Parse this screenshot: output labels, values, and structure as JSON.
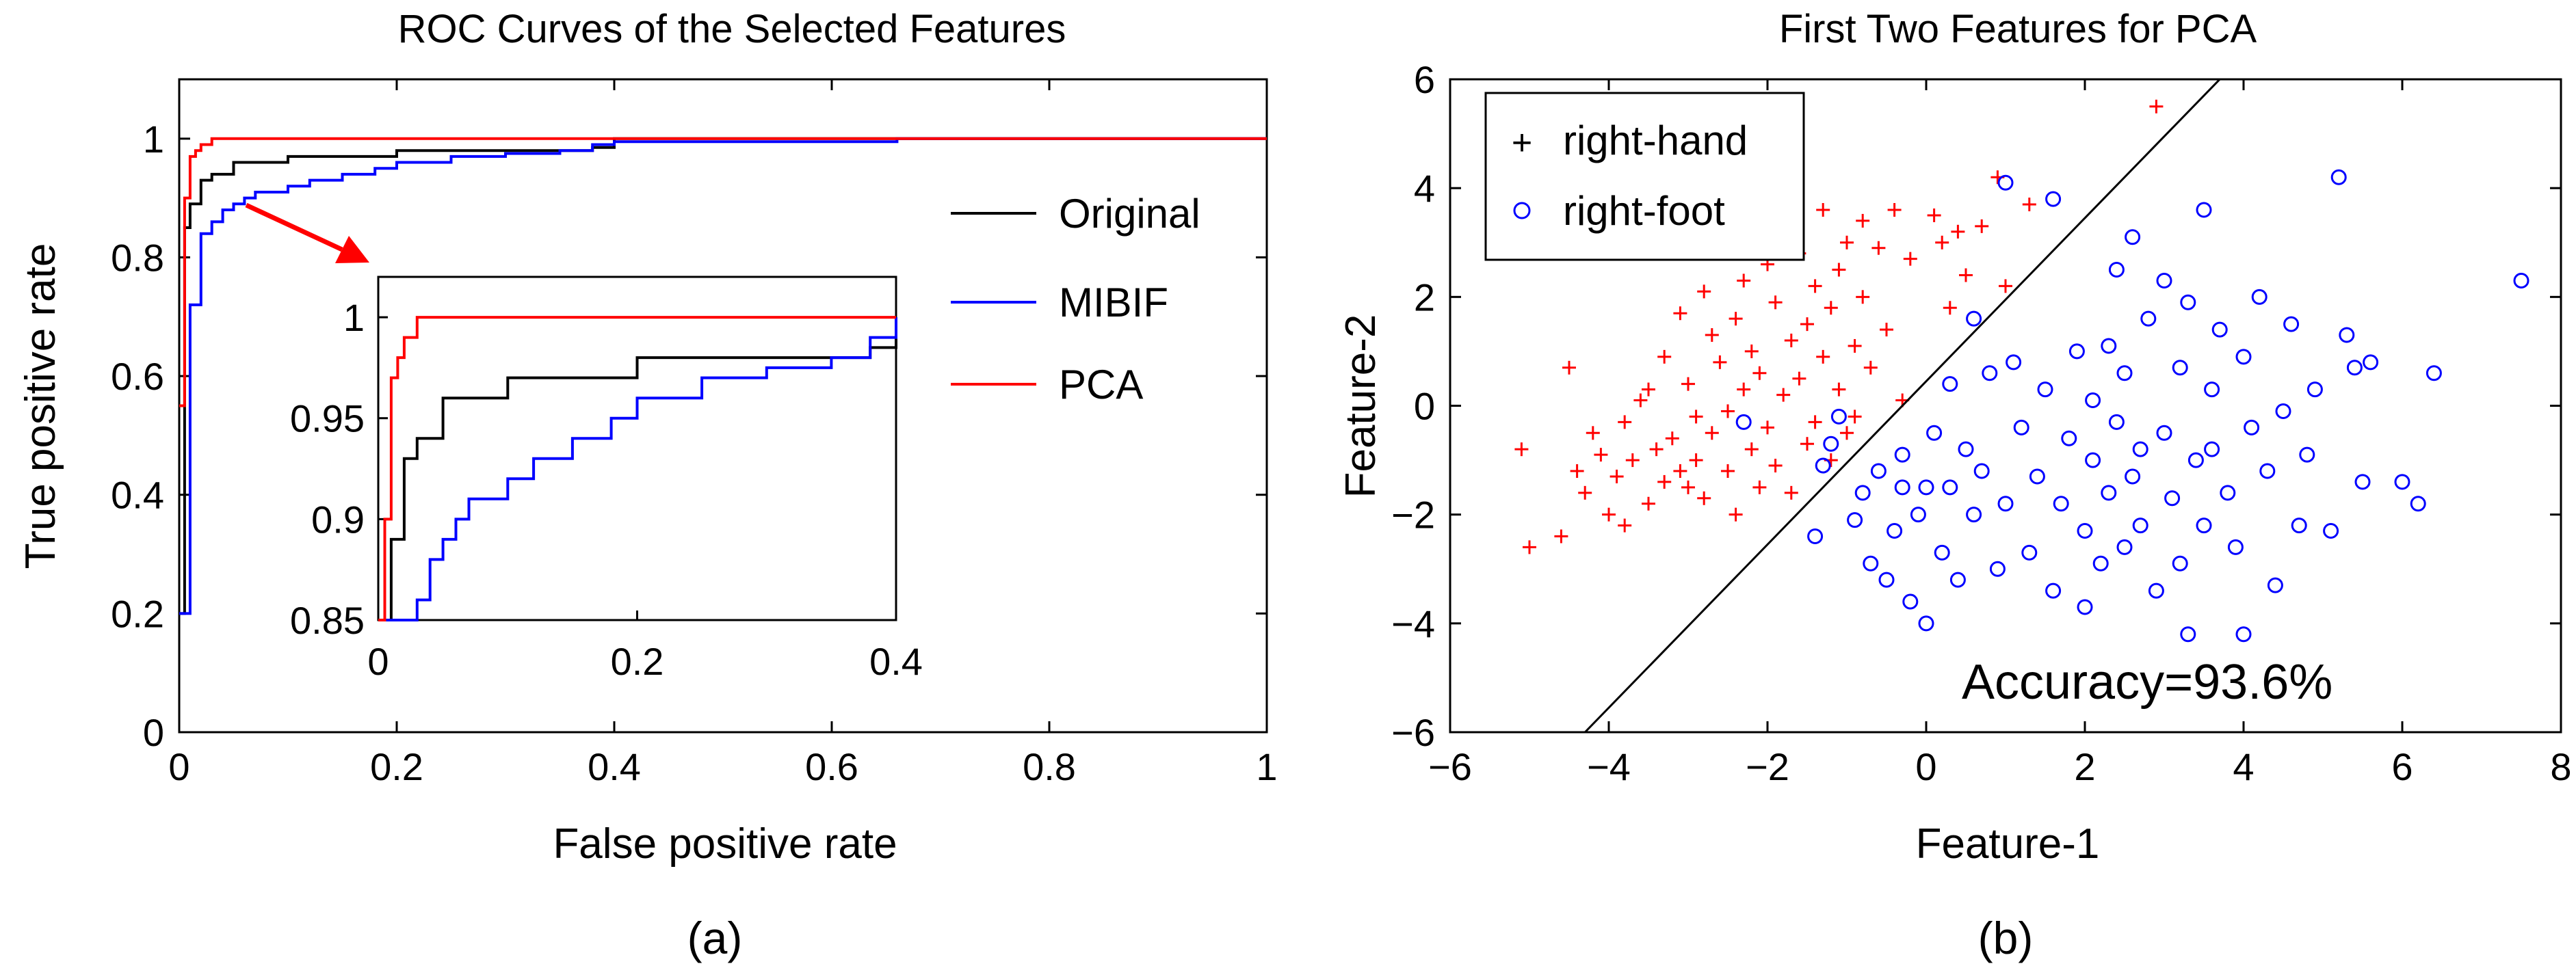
{
  "colors": {
    "original": "#000000",
    "mibif": "#0000ff",
    "pca": "#ff0000",
    "marker_red": "#ff0000",
    "marker_blue": "#0000ff",
    "arrow": "#ff0000"
  },
  "panel_a": {
    "caption": "(a)"
  },
  "panel_b": {
    "caption": "(b)",
    "accuracy_text": "Accuracy=93.6%"
  },
  "chart_data": [
    {
      "type": "line",
      "title": "ROC Curves of the Selected Features",
      "xlabel": "False positive rate",
      "ylabel": "True positive rate",
      "xlim": [
        0,
        1
      ],
      "ylim": [
        0,
        1.1
      ],
      "xticks": [
        0,
        0.2,
        0.4,
        0.6,
        0.8,
        1
      ],
      "xtick_labels": [
        "0",
        "0.2",
        "0.4",
        "0.6",
        "0.8",
        "1"
      ],
      "yticks": [
        0,
        0.2,
        0.4,
        0.6,
        0.8,
        1
      ],
      "ytick_labels": [
        "0",
        "0.2",
        "0.4",
        "0.6",
        "0.8",
        "1"
      ],
      "legend": [
        "Original",
        "MIBIF",
        "PCA"
      ],
      "legend_position": "right",
      "series": [
        {
          "name": "Original",
          "color": "#000000",
          "x": [
            0,
            0.005,
            0.005,
            0.01,
            0.01,
            0.02,
            0.02,
            0.03,
            0.03,
            0.05,
            0.05,
            0.1,
            0.1,
            0.2,
            0.2,
            0.38,
            0.38,
            0.4,
            0.4,
            1
          ],
          "y": [
            0.2,
            0.2,
            0.85,
            0.85,
            0.89,
            0.89,
            0.93,
            0.93,
            0.94,
            0.94,
            0.96,
            0.96,
            0.97,
            0.97,
            0.98,
            0.98,
            0.985,
            0.985,
            1.0,
            1.0
          ]
        },
        {
          "name": "MIBIF",
          "color": "#0000ff",
          "x": [
            0,
            0.01,
            0.01,
            0.02,
            0.02,
            0.03,
            0.03,
            0.04,
            0.04,
            0.05,
            0.05,
            0.06,
            0.06,
            0.07,
            0.07,
            0.1,
            0.1,
            0.12,
            0.12,
            0.15,
            0.15,
            0.18,
            0.18,
            0.2,
            0.2,
            0.25,
            0.25,
            0.3,
            0.3,
            0.35,
            0.35,
            0.38,
            0.38,
            0.4,
            0.4,
            0.66,
            0.66,
            1.0
          ],
          "y": [
            0.2,
            0.2,
            0.72,
            0.72,
            0.84,
            0.84,
            0.86,
            0.86,
            0.88,
            0.88,
            0.89,
            0.89,
            0.9,
            0.9,
            0.91,
            0.91,
            0.92,
            0.92,
            0.93,
            0.93,
            0.94,
            0.94,
            0.95,
            0.95,
            0.96,
            0.96,
            0.97,
            0.97,
            0.975,
            0.975,
            0.98,
            0.98,
            0.99,
            0.99,
            0.995,
            0.995,
            1.0,
            1.0
          ]
        },
        {
          "name": "PCA",
          "color": "#ff0000",
          "x": [
            0,
            0.005,
            0.005,
            0.01,
            0.01,
            0.015,
            0.015,
            0.02,
            0.02,
            0.03,
            0.03,
            1.0
          ],
          "y": [
            0.55,
            0.55,
            0.9,
            0.9,
            0.97,
            0.97,
            0.98,
            0.98,
            0.99,
            0.99,
            1.0,
            1.0
          ]
        }
      ],
      "inset": {
        "xlim": [
          0,
          0.4
        ],
        "ylim": [
          0.85,
          1.02
        ],
        "xticks": [
          0,
          0.2,
          0.4
        ],
        "xtick_labels": [
          "0",
          "0.2",
          "0.4"
        ],
        "yticks": [
          0.85,
          0.9,
          0.95,
          1
        ],
        "ytick_labels": [
          "0.85",
          "0.9",
          "0.95",
          "1"
        ]
      }
    },
    {
      "type": "scatter",
      "title": "First Two Features for PCA",
      "xlabel": "Feature-1",
      "ylabel": "Feature-2",
      "xlim": [
        -6,
        8
      ],
      "ylim": [
        -6,
        6
      ],
      "xticks": [
        -6,
        -4,
        -2,
        0,
        2,
        4,
        6,
        8
      ],
      "xtick_labels": [
        "−6",
        "−4",
        "−2",
        "0",
        "2",
        "4",
        "6",
        "8"
      ],
      "yticks": [
        -6,
        -4,
        -2,
        0,
        2,
        4,
        6
      ],
      "ytick_labels": [
        "−6",
        "−4",
        "−2",
        "0",
        "2",
        "4",
        "6"
      ],
      "legend": [
        "right-hand",
        "right-foot"
      ],
      "legend_position": "top-left",
      "decision_boundary": {
        "x": [
          -4.3,
          3.7
        ],
        "y": [
          -6,
          6
        ]
      },
      "series": [
        {
          "name": "right-hand",
          "marker": "+",
          "color": "#ff0000",
          "points": [
            [
              -5.1,
              -0.8
            ],
            [
              -5.0,
              -2.6
            ],
            [
              -4.6,
              -2.4
            ],
            [
              -4.5,
              0.7
            ],
            [
              -4.4,
              -1.2
            ],
            [
              -4.3,
              -1.6
            ],
            [
              -4.2,
              -0.5
            ],
            [
              -4.1,
              -0.9
            ],
            [
              -4.0,
              -2.0
            ],
            [
              -3.9,
              -1.3
            ],
            [
              -3.8,
              -0.3
            ],
            [
              -3.8,
              -2.2
            ],
            [
              -3.7,
              -1.0
            ],
            [
              -3.6,
              0.1
            ],
            [
              -3.5,
              -1.8
            ],
            [
              -3.5,
              0.3
            ],
            [
              -3.4,
              -0.8
            ],
            [
              -3.3,
              -1.4
            ],
            [
              -3.3,
              0.9
            ],
            [
              -3.2,
              -0.6
            ],
            [
              -3.1,
              -1.2
            ],
            [
              -3.1,
              1.7
            ],
            [
              -3.0,
              -1.5
            ],
            [
              -3.0,
              0.4
            ],
            [
              -2.9,
              -0.2
            ],
            [
              -2.9,
              -1.0
            ],
            [
              -2.8,
              -1.7
            ],
            [
              -2.8,
              2.1
            ],
            [
              -2.7,
              -0.5
            ],
            [
              -2.7,
              1.3
            ],
            [
              -2.6,
              2.9
            ],
            [
              -2.6,
              0.8
            ],
            [
              -2.5,
              -1.2
            ],
            [
              -2.5,
              -0.1
            ],
            [
              -2.4,
              1.6
            ],
            [
              -2.4,
              -2.0
            ],
            [
              -2.3,
              0.3
            ],
            [
              -2.3,
              2.3
            ],
            [
              -2.2,
              -0.8
            ],
            [
              -2.2,
              1.0
            ],
            [
              -2.1,
              -1.5
            ],
            [
              -2.1,
              0.6
            ],
            [
              -2.0,
              2.6
            ],
            [
              -2.0,
              -0.4
            ],
            [
              -1.9,
              1.9
            ],
            [
              -1.9,
              -1.1
            ],
            [
              -1.8,
              0.2
            ],
            [
              -1.8,
              3.3
            ],
            [
              -1.7,
              1.2
            ],
            [
              -1.7,
              -1.6
            ],
            [
              -1.6,
              2.8
            ],
            [
              -1.6,
              0.5
            ],
            [
              -1.5,
              -0.7
            ],
            [
              -1.5,
              1.5
            ],
            [
              -1.4,
              2.2
            ],
            [
              -1.4,
              -0.3
            ],
            [
              -1.3,
              3.6
            ],
            [
              -1.3,
              0.9
            ],
            [
              -1.2,
              -1.0
            ],
            [
              -1.2,
              1.8
            ],
            [
              -1.1,
              0.3
            ],
            [
              -1.1,
              2.5
            ],
            [
              -1.0,
              -0.5
            ],
            [
              -1.0,
              3.0
            ],
            [
              -0.9,
              1.1
            ],
            [
              -0.9,
              -0.2
            ],
            [
              -0.8,
              2.0
            ],
            [
              -0.8,
              3.4
            ],
            [
              -0.7,
              0.7
            ],
            [
              -0.6,
              2.9
            ],
            [
              -0.5,
              1.4
            ],
            [
              -0.4,
              3.6
            ],
            [
              -0.3,
              0.1
            ],
            [
              -0.2,
              2.7
            ],
            [
              0.1,
              3.5
            ],
            [
              0.2,
              3.0
            ],
            [
              0.3,
              1.8
            ],
            [
              0.4,
              3.2
            ],
            [
              0.5,
              2.4
            ],
            [
              0.7,
              3.3
            ],
            [
              0.9,
              4.2
            ],
            [
              1.0,
              2.2
            ],
            [
              1.3,
              3.7
            ],
            [
              2.9,
              5.5
            ]
          ]
        },
        {
          "name": "right-foot",
          "marker": "o",
          "color": "#0000ff",
          "points": [
            [
              -2.3,
              -0.3
            ],
            [
              -1.4,
              -2.4
            ],
            [
              -1.3,
              -1.1
            ],
            [
              -1.2,
              -0.7
            ],
            [
              -1.1,
              -0.2
            ],
            [
              -0.9,
              -2.1
            ],
            [
              -0.8,
              -1.6
            ],
            [
              -0.7,
              -2.9
            ],
            [
              -0.6,
              -1.2
            ],
            [
              -0.5,
              -3.2
            ],
            [
              -0.4,
              -2.3
            ],
            [
              -0.3,
              -0.9
            ],
            [
              -0.3,
              -1.5
            ],
            [
              -0.2,
              -3.6
            ],
            [
              -0.1,
              -2.0
            ],
            [
              0.0,
              -1.5
            ],
            [
              0.0,
              -4.0
            ],
            [
              0.1,
              -0.5
            ],
            [
              0.2,
              -2.7
            ],
            [
              0.3,
              0.4
            ],
            [
              0.3,
              -1.5
            ],
            [
              0.4,
              -3.2
            ],
            [
              0.5,
              -0.8
            ],
            [
              0.6,
              1.6
            ],
            [
              0.6,
              -2.0
            ],
            [
              0.7,
              -1.2
            ],
            [
              0.8,
              0.6
            ],
            [
              0.9,
              -3.0
            ],
            [
              1.0,
              -1.8
            ],
            [
              1.0,
              4.1
            ],
            [
              1.1,
              0.8
            ],
            [
              1.2,
              -0.4
            ],
            [
              1.3,
              -2.7
            ],
            [
              1.4,
              -1.3
            ],
            [
              1.5,
              0.3
            ],
            [
              1.6,
              -3.4
            ],
            [
              1.6,
              3.8
            ],
            [
              1.7,
              -1.8
            ],
            [
              1.8,
              -0.6
            ],
            [
              1.9,
              1.0
            ],
            [
              2.0,
              -2.3
            ],
            [
              2.0,
              -3.7
            ],
            [
              2.1,
              0.1
            ],
            [
              2.1,
              -1.0
            ],
            [
              2.2,
              -2.9
            ],
            [
              2.3,
              1.1
            ],
            [
              2.3,
              -1.6
            ],
            [
              2.4,
              -0.3
            ],
            [
              2.4,
              2.5
            ],
            [
              2.5,
              -2.6
            ],
            [
              2.5,
              0.6
            ],
            [
              2.6,
              -1.3
            ],
            [
              2.6,
              3.1
            ],
            [
              2.7,
              -2.2
            ],
            [
              2.7,
              -0.8
            ],
            [
              2.8,
              1.6
            ],
            [
              2.9,
              -3.4
            ],
            [
              3.0,
              -0.5
            ],
            [
              3.0,
              2.3
            ],
            [
              3.1,
              -1.7
            ],
            [
              3.2,
              -2.9
            ],
            [
              3.2,
              0.7
            ],
            [
              3.3,
              -4.2
            ],
            [
              3.3,
              1.9
            ],
            [
              3.4,
              -1.0
            ],
            [
              3.5,
              3.6
            ],
            [
              3.5,
              -2.2
            ],
            [
              3.6,
              0.3
            ],
            [
              3.6,
              -0.8
            ],
            [
              3.7,
              1.4
            ],
            [
              3.8,
              -1.6
            ],
            [
              3.9,
              -2.6
            ],
            [
              4.0,
              0.9
            ],
            [
              4.0,
              -4.2
            ],
            [
              4.1,
              -0.4
            ],
            [
              4.2,
              2.0
            ],
            [
              4.3,
              -1.2
            ],
            [
              4.4,
              -3.3
            ],
            [
              4.5,
              -0.1
            ],
            [
              4.6,
              1.5
            ],
            [
              4.7,
              -2.2
            ],
            [
              4.8,
              -0.9
            ],
            [
              4.9,
              0.3
            ],
            [
              5.1,
              -2.3
            ],
            [
              5.2,
              4.2
            ],
            [
              5.3,
              1.3
            ],
            [
              5.4,
              0.7
            ],
            [
              5.5,
              -1.4
            ],
            [
              5.6,
              0.8
            ],
            [
              6.0,
              -1.4
            ],
            [
              6.2,
              -1.8
            ],
            [
              6.4,
              0.6
            ],
            [
              7.5,
              2.3
            ]
          ]
        }
      ]
    }
  ]
}
